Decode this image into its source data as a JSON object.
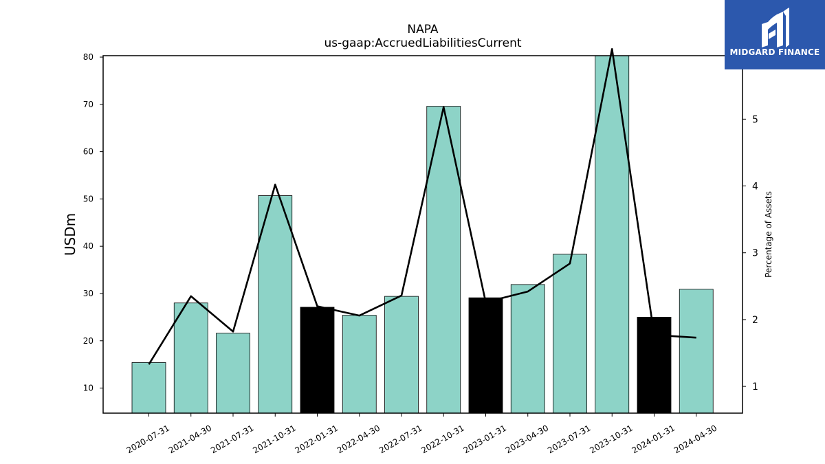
{
  "chart_data": {
    "type": "bar",
    "title": "NAPA",
    "subtitle": "us-gaap:AccruedLiabilitiesCurrent",
    "ylabel": "USDm",
    "y2label": "Percentage of Assets",
    "categories": [
      "2020-07-31",
      "2021-04-30",
      "2021-07-31",
      "2021-10-31",
      "2022-01-31",
      "2022-04-30",
      "2022-07-31",
      "2022-10-31",
      "2023-01-31",
      "2023-04-30",
      "2023-07-31",
      "2023-10-31",
      "2024-01-31",
      "2024-04-30"
    ],
    "values": [
      15.4,
      28.0,
      21.6,
      50.7,
      27.1,
      25.4,
      29.4,
      69.6,
      29.1,
      31.9,
      38.3,
      80.5,
      25.0,
      30.9
    ],
    "bar_colors": [
      "#8dd3c7",
      "#8dd3c7",
      "#8dd3c7",
      "#8dd3c7",
      "#000000",
      "#8dd3c7",
      "#8dd3c7",
      "#8dd3c7",
      "#000000",
      "#8dd3c7",
      "#8dd3c7",
      "#8dd3c7",
      "#000000",
      "#8dd3c7"
    ],
    "ylim": [
      4.7,
      80.3
    ],
    "yticks": [
      10,
      20,
      30,
      40,
      50,
      60,
      70,
      80
    ],
    "line_series": {
      "values": [
        1.33,
        2.35,
        1.82,
        4.02,
        2.2,
        2.06,
        2.36,
        5.18,
        2.26,
        2.42,
        2.84,
        6.05,
        1.77,
        1.73
      ],
      "color": "#000000"
    },
    "y2lim": [
      0.6,
      5.95
    ],
    "y2ticks": [
      1,
      2,
      3,
      4,
      5
    ],
    "grid": false,
    "legend": "none"
  },
  "logo": {
    "text": "MIDGARD FINANCE",
    "color": "#2c58ad"
  }
}
